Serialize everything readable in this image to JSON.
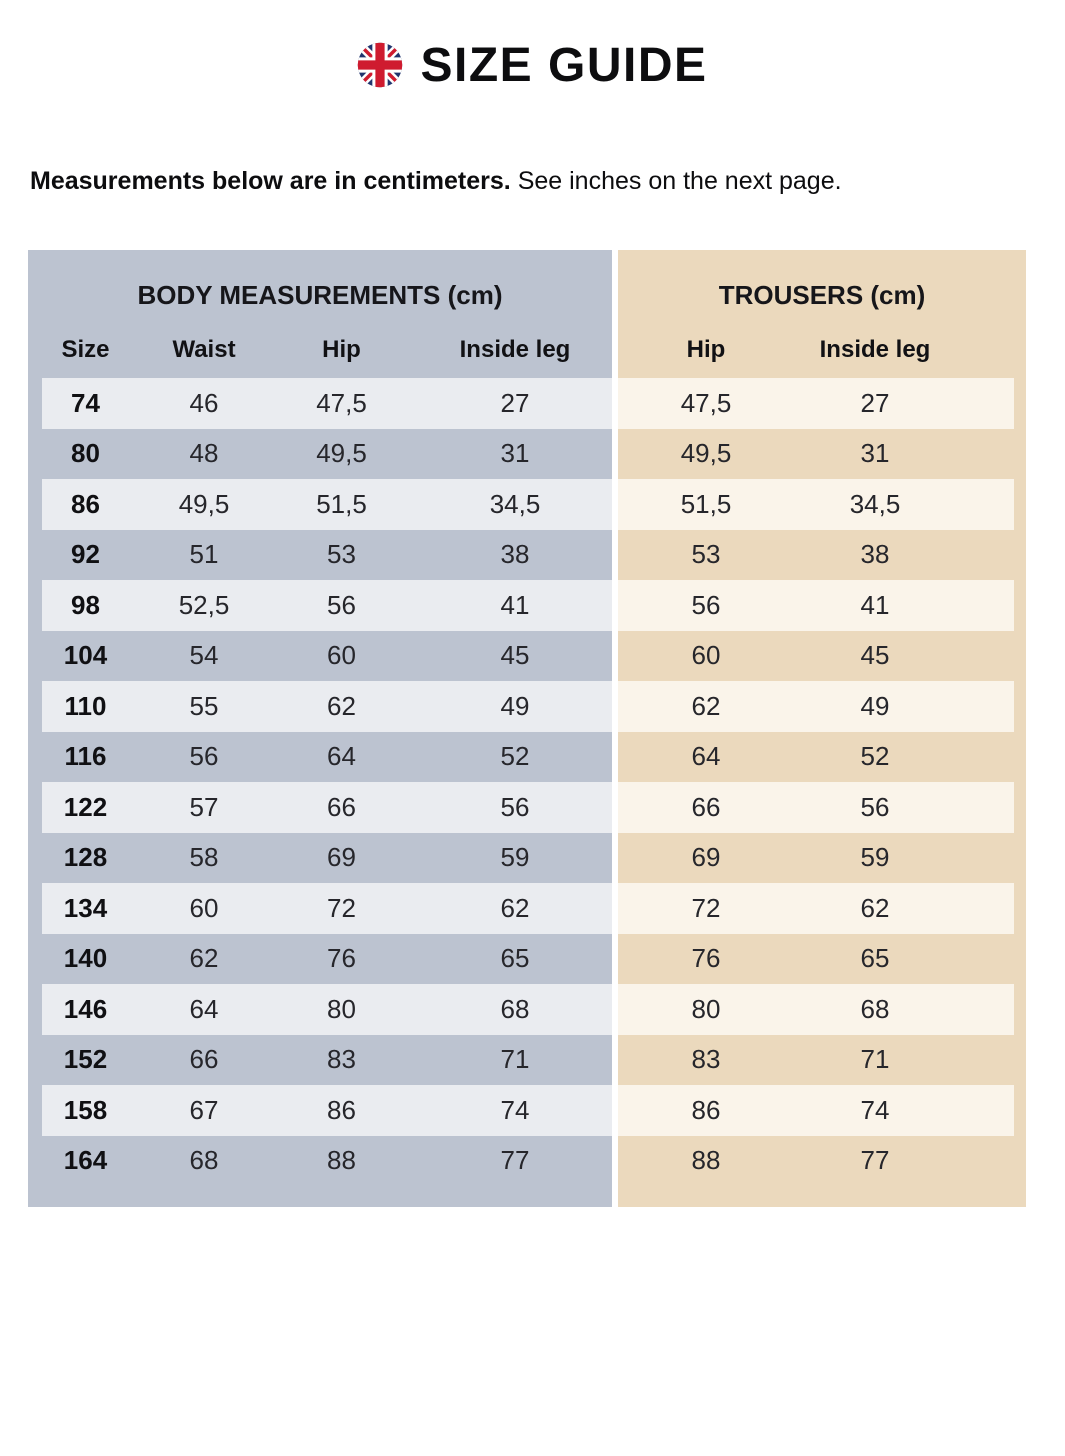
{
  "header": {
    "title": "SIZE GUIDE"
  },
  "note": {
    "bold": "Measurements below are in centimeters.",
    "rest": " See inches on the next page."
  },
  "table": {
    "units": "cm",
    "body_section": {
      "title": "BODY MEASUREMENTS (cm)",
      "columns": [
        "Size",
        "Waist",
        "Hip",
        "Inside leg"
      ]
    },
    "trousers_section": {
      "title": "TROUSERS (cm)",
      "columns": [
        "Hip",
        "Inside leg"
      ]
    },
    "rows": [
      {
        "size": "74",
        "waist": "46",
        "hip": "47,5",
        "inside_leg": "27",
        "trousers_hip": "47,5",
        "trousers_inside_leg": "27"
      },
      {
        "size": "80",
        "waist": "48",
        "hip": "49,5",
        "inside_leg": "31",
        "trousers_hip": "49,5",
        "trousers_inside_leg": "31"
      },
      {
        "size": "86",
        "waist": "49,5",
        "hip": "51,5",
        "inside_leg": "34,5",
        "trousers_hip": "51,5",
        "trousers_inside_leg": "34,5"
      },
      {
        "size": "92",
        "waist": "51",
        "hip": "53",
        "inside_leg": "38",
        "trousers_hip": "53",
        "trousers_inside_leg": "38"
      },
      {
        "size": "98",
        "waist": "52,5",
        "hip": "56",
        "inside_leg": "41",
        "trousers_hip": "56",
        "trousers_inside_leg": "41"
      },
      {
        "size": "104",
        "waist": "54",
        "hip": "60",
        "inside_leg": "45",
        "trousers_hip": "60",
        "trousers_inside_leg": "45"
      },
      {
        "size": "110",
        "waist": "55",
        "hip": "62",
        "inside_leg": "49",
        "trousers_hip": "62",
        "trousers_inside_leg": "49"
      },
      {
        "size": "116",
        "waist": "56",
        "hip": "64",
        "inside_leg": "52",
        "trousers_hip": "64",
        "trousers_inside_leg": "52"
      },
      {
        "size": "122",
        "waist": "57",
        "hip": "66",
        "inside_leg": "56",
        "trousers_hip": "66",
        "trousers_inside_leg": "56"
      },
      {
        "size": "128",
        "waist": "58",
        "hip": "69",
        "inside_leg": "59",
        "trousers_hip": "69",
        "trousers_inside_leg": "59"
      },
      {
        "size": "134",
        "waist": "60",
        "hip": "72",
        "inside_leg": "62",
        "trousers_hip": "72",
        "trousers_inside_leg": "62"
      },
      {
        "size": "140",
        "waist": "62",
        "hip": "76",
        "inside_leg": "65",
        "trousers_hip": "76",
        "trousers_inside_leg": "65"
      },
      {
        "size": "146",
        "waist": "64",
        "hip": "80",
        "inside_leg": "68",
        "trousers_hip": "80",
        "trousers_inside_leg": "68"
      },
      {
        "size": "152",
        "waist": "66",
        "hip": "83",
        "inside_leg": "71",
        "trousers_hip": "83",
        "trousers_inside_leg": "71"
      },
      {
        "size": "158",
        "waist": "67",
        "hip": "86",
        "inside_leg": "74",
        "trousers_hip": "86",
        "trousers_inside_leg": "74"
      },
      {
        "size": "164",
        "waist": "68",
        "hip": "88",
        "inside_leg": "77",
        "trousers_hip": "88",
        "trousers_inside_leg": "77"
      }
    ]
  },
  "colors": {
    "body_section_bg": "#bcc3d0",
    "body_row_light": "#eaecf0",
    "trousers_section_bg": "#ebd9bd",
    "trousers_row_light": "#faf4ea",
    "flag_red": "#cf1b2f",
    "flag_blue": "#22356e",
    "text": "#111114"
  }
}
